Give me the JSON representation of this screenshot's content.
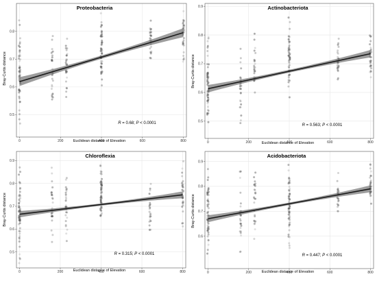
{
  "chart_data": [
    {
      "type": "scatter",
      "title": "Proteobacteria",
      "xlabel": "Euclidean distance of Elevation",
      "ylabel": "Bray-Curtis distance",
      "xlim": [
        -15,
        815
      ],
      "ylim": [
        0.42,
        0.9
      ],
      "xticks": [
        0,
        200,
        400,
        600,
        800
      ],
      "yticks": [
        0.5,
        0.6,
        0.7,
        0.8
      ],
      "grid": true,
      "stat": {
        "r_label": "R",
        "r_value": " = 0.68;",
        "p_label": "P",
        "p_value": " < 0.0001"
      },
      "fit": {
        "x": [
          0,
          800
        ],
        "y": [
          0.619,
          0.795
        ],
        "ci_start": 0.016,
        "ci_mid": 0.006,
        "ci_end": 0.016
      },
      "x_groups": [
        0,
        160,
        230,
        400,
        640,
        800
      ],
      "group_ranges": [
        [
          0.45,
          0.84
        ],
        [
          0.5,
          0.81
        ],
        [
          0.55,
          0.8
        ],
        [
          0.6,
          0.88
        ],
        [
          0.69,
          0.86
        ],
        [
          0.69,
          0.88
        ]
      ],
      "point_count": [
        60,
        28,
        28,
        60,
        26,
        32
      ]
    },
    {
      "type": "scatter",
      "title": "Actinobacteriota",
      "xlabel": "Euclidean distance of Elevation",
      "ylabel": "Bray-Curtis distance",
      "xlim": [
        -15,
        815
      ],
      "ylim": [
        0.44,
        0.91
      ],
      "xticks": [
        0,
        200,
        400,
        600,
        800
      ],
      "yticks": [
        0.5,
        0.6,
        0.7,
        0.8,
        0.9
      ],
      "grid": true,
      "stat": {
        "r_label": "R",
        "r_value": " = 0.563;",
        "p_label": "P",
        "p_value": " < 0.0001"
      },
      "fit": {
        "x": [
          0,
          800
        ],
        "y": [
          0.613,
          0.735
        ],
        "ci_start": 0.013,
        "ci_mid": 0.005,
        "ci_end": 0.013
      },
      "x_groups": [
        0,
        160,
        230,
        400,
        640,
        800
      ],
      "group_ranges": [
        [
          0.46,
          0.8
        ],
        [
          0.49,
          0.77
        ],
        [
          0.56,
          0.82
        ],
        [
          0.58,
          0.87
        ],
        [
          0.64,
          0.79
        ],
        [
          0.64,
          0.81
        ]
      ],
      "point_count": [
        60,
        28,
        28,
        60,
        26,
        32
      ]
    },
    {
      "type": "scatter",
      "title": "Chloroflexia",
      "xlabel": "Euclidean distance of Elevation",
      "ylabel": "Bray-Curtis distance",
      "xlim": [
        -15,
        815
      ],
      "ylim": [
        0.43,
        0.94
      ],
      "xticks": [
        0,
        200,
        400,
        600,
        800
      ],
      "yticks": [
        0.5,
        0.6,
        0.7,
        0.8,
        0.9
      ],
      "grid": true,
      "stat": {
        "r_label": "R",
        "r_value": " = 0.315;",
        "p_label": "P",
        "p_value": " < 0.0001"
      },
      "fit": {
        "x": [
          0,
          800
        ],
        "y": [
          0.665,
          0.75
        ],
        "ci_start": 0.014,
        "ci_mid": 0.005,
        "ci_end": 0.015
      },
      "x_groups": [
        0,
        160,
        230,
        400,
        640,
        800
      ],
      "group_ranges": [
        [
          0.45,
          0.89
        ],
        [
          0.53,
          0.87
        ],
        [
          0.52,
          0.92
        ],
        [
          0.62,
          0.9
        ],
        [
          0.55,
          0.81
        ],
        [
          0.6,
          0.93
        ]
      ],
      "point_count": [
        60,
        28,
        28,
        60,
        26,
        32
      ]
    },
    {
      "type": "scatter",
      "title": "Acidobacteriota",
      "xlabel": "Euclidean distance of Elevation",
      "ylabel": "Bray-Curtis distance",
      "xlim": [
        -15,
        815
      ],
      "ylim": [
        0.47,
        0.94
      ],
      "xticks": [
        0,
        200,
        400,
        600,
        800
      ],
      "yticks": [
        0.6,
        0.7,
        0.8,
        0.9
      ],
      "grid": true,
      "stat": {
        "r_label": "R",
        "r_value": " = 0.447;",
        "p_label": "P",
        "p_value": " < 0.0001"
      },
      "fit": {
        "x": [
          0,
          800
        ],
        "y": [
          0.67,
          0.79
        ],
        "ci_start": 0.014,
        "ci_mid": 0.005,
        "ci_end": 0.014
      },
      "x_groups": [
        0,
        160,
        230,
        400,
        640,
        800
      ],
      "group_ranges": [
        [
          0.5,
          0.88
        ],
        [
          0.5,
          0.87
        ],
        [
          0.55,
          0.91
        ],
        [
          0.55,
          0.9
        ],
        [
          0.68,
          0.86
        ],
        [
          0.72,
          0.89
        ]
      ],
      "point_count": [
        60,
        28,
        28,
        60,
        26,
        32
      ]
    }
  ],
  "colors": {
    "point": "#555555",
    "line": "#1a1a1a",
    "ribbon": "#8c8c8c",
    "grid": "#e6e6e6",
    "frame": "#555555"
  }
}
